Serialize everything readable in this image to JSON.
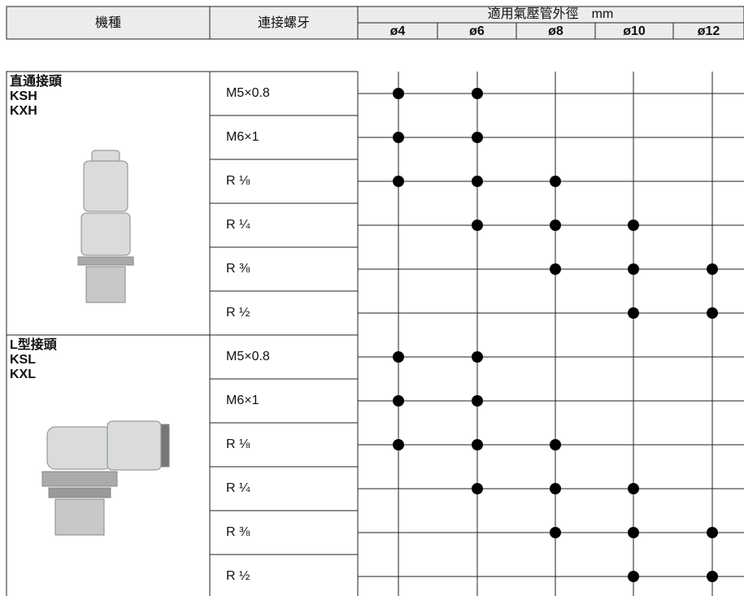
{
  "header": {
    "model": "機種",
    "thread": "連接螺牙",
    "tube_od": "適用氣壓管外徑　mm",
    "sizes": [
      "ø4",
      "ø6",
      "ø8",
      "ø10",
      "ø12"
    ]
  },
  "groups": [
    {
      "name": "直通接頭",
      "codes": [
        "KSH",
        "KXH"
      ],
      "rows": [
        {
          "thread": "M5×0.8",
          "available": [
            true,
            true,
            false,
            false,
            false
          ]
        },
        {
          "thread": "M6×1",
          "available": [
            true,
            true,
            false,
            false,
            false
          ]
        },
        {
          "thread": "R ⅛",
          "available": [
            true,
            true,
            true,
            false,
            false
          ]
        },
        {
          "thread": "R ¼",
          "available": [
            false,
            true,
            true,
            true,
            false
          ]
        },
        {
          "thread": "R ⅜",
          "available": [
            false,
            false,
            true,
            true,
            true
          ]
        },
        {
          "thread": "R ½",
          "available": [
            false,
            false,
            false,
            true,
            true
          ]
        }
      ]
    },
    {
      "name": "L型接頭",
      "codes": [
        "KSL",
        "KXL"
      ],
      "rows": [
        {
          "thread": "M5×0.8",
          "available": [
            true,
            true,
            false,
            false,
            false
          ]
        },
        {
          "thread": "M6×1",
          "available": [
            true,
            true,
            false,
            false,
            false
          ]
        },
        {
          "thread": "R ⅛",
          "available": [
            true,
            true,
            true,
            false,
            false
          ]
        },
        {
          "thread": "R ¼",
          "available": [
            false,
            true,
            true,
            true,
            false
          ]
        },
        {
          "thread": "R ⅜",
          "available": [
            false,
            false,
            true,
            true,
            true
          ]
        },
        {
          "thread": "R ½",
          "available": [
            false,
            false,
            false,
            true,
            true
          ]
        }
      ]
    }
  ]
}
